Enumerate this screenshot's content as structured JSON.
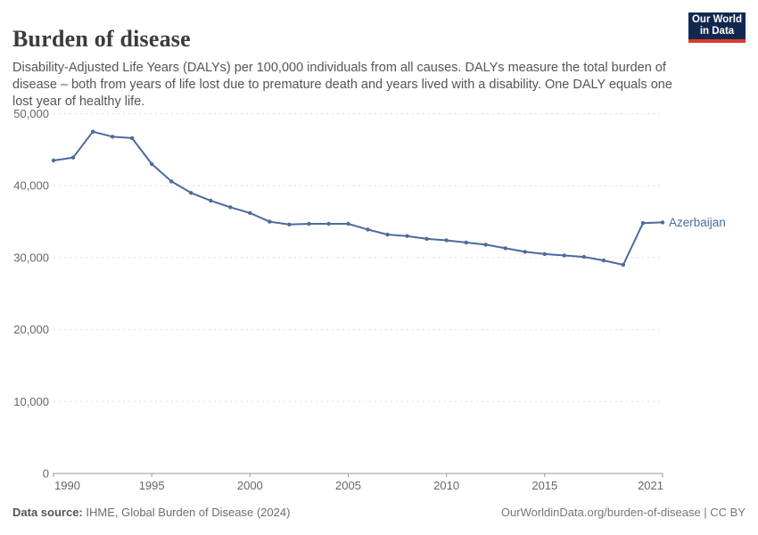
{
  "header": {
    "title": "Burden of disease",
    "subtitle": "Disability-Adjusted Life Years (DALYs) per 100,000 individuals from all causes. DALYs measure the total burden of disease – both from years of life lost due to premature death and years lived with a disability. One DALY equals one lost year of healthy life."
  },
  "logo": {
    "line1": "Our World",
    "line2": "in Data",
    "bg_color": "#12294F",
    "accent_color": "#D93A2B"
  },
  "chart_data": {
    "type": "line",
    "title": "Burden of disease",
    "xlabel": "",
    "ylabel": "DALYs per 100,000 individuals",
    "xlim": [
      1990,
      2021
    ],
    "ylim": [
      0,
      50000
    ],
    "x_ticks": [
      1990,
      1995,
      2000,
      2005,
      2010,
      2015,
      2021
    ],
    "y_ticks": [
      0,
      10000,
      20000,
      30000,
      40000,
      50000
    ],
    "grid": "horizontal-dashed",
    "legend_position": "end-of-line-label",
    "series": [
      {
        "name": "Azerbaijan",
        "color": "#4C6A9C",
        "x": [
          1990,
          1991,
          1992,
          1993,
          1994,
          1995,
          1996,
          1997,
          1998,
          1999,
          2000,
          2001,
          2002,
          2003,
          2004,
          2005,
          2006,
          2007,
          2008,
          2009,
          2010,
          2011,
          2012,
          2013,
          2014,
          2015,
          2016,
          2017,
          2018,
          2019,
          2020,
          2021
        ],
        "values": [
          43500,
          43900,
          47500,
          46800,
          46600,
          43000,
          40600,
          39000,
          37900,
          37000,
          36200,
          35000,
          34600,
          34700,
          34700,
          34700,
          33900,
          33200,
          33000,
          32600,
          32400,
          32100,
          31800,
          31300,
          30800,
          30500,
          30300,
          30100,
          29600,
          29000,
          34800,
          34900
        ]
      }
    ],
    "axis_colors": {
      "grid": "#dcdcdc",
      "axis_line": "#999999",
      "tick_label": "#666666"
    }
  },
  "footer": {
    "source_label": "Data source:",
    "source_text": " IHME, Global Burden of Disease (2024)",
    "right_text": "OurWorldinData.org/burden-of-disease | CC BY"
  }
}
